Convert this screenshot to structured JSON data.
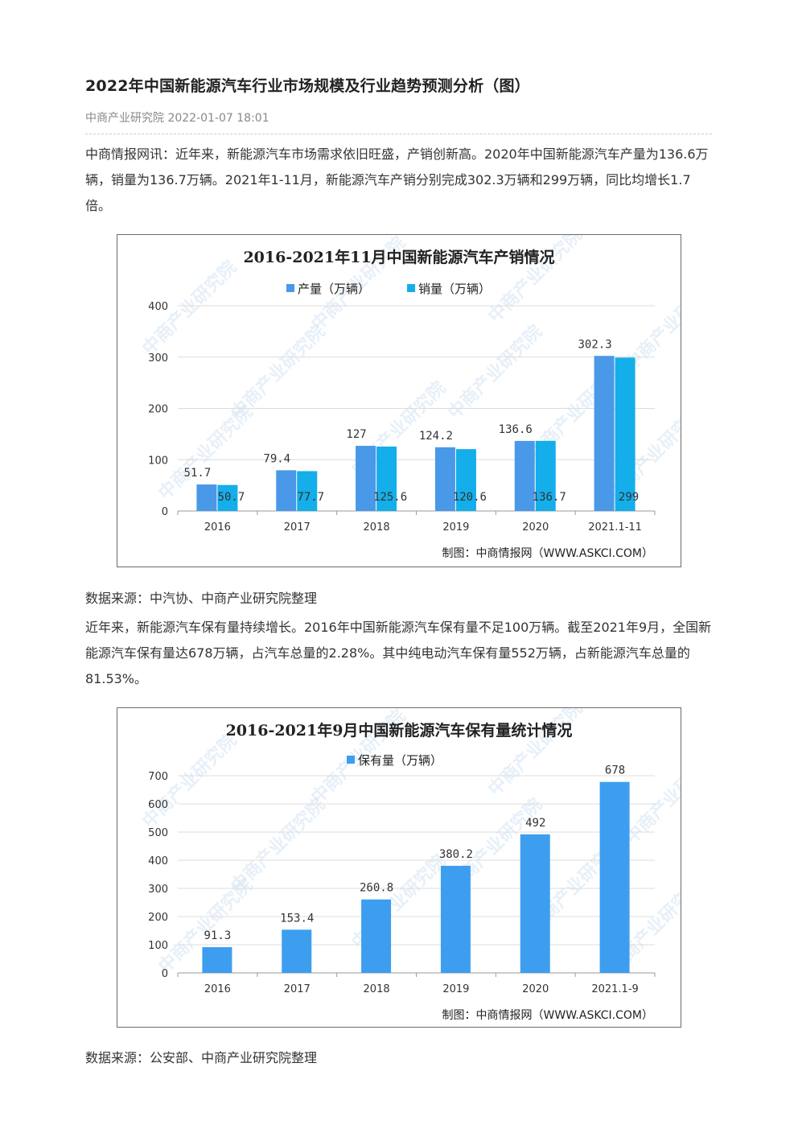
{
  "article": {
    "title": "2022年中国新能源汽车行业市场规模及行业趋势预测分析（图）",
    "source_time": "中商产业研究院 2022-01-07 18:01",
    "para1": "中商情报网讯：近年来，新能源汽车市场需求依旧旺盛，产销创新高。2020年中国新能源汽车产量为136.6万辆，销量为136.7万辆。2021年1-11月，新能源汽车产销分别完成302.3万辆和299万辆，同比均增长1.7倍。",
    "source1": "数据来源：中汽协、中商产业研究院整理",
    "para2": "近年来，新能源汽车保有量持续增长。2016年中国新能源汽车保有量不足100万辆。截至2021年9月，全国新能源汽车保有量达678万辆，占汽车总量的2.28%。其中纯电动汽车保有量552万辆，占新能源汽车总量的81.53%。",
    "source2": "数据来源：公安部、中商产业研究院整理"
  },
  "watermark": "中商产业研究院",
  "chart_data": [
    {
      "type": "bar",
      "title": "2016-2021年11月中国新能源汽车产销情况",
      "categories": [
        "2016",
        "2017",
        "2018",
        "2019",
        "2020",
        "2021.1-11"
      ],
      "series": [
        {
          "name": "产量（万辆）",
          "values": [
            51.7,
            79.4,
            127,
            124.2,
            136.6,
            302.3
          ],
          "labels": [
            "51.7",
            "79.4",
            "127",
            "124.2",
            "136.6",
            "302.3"
          ],
          "color": "#4a98e8"
        },
        {
          "name": "销量（万辆）",
          "values": [
            50.7,
            77.7,
            125.6,
            120.6,
            136.7,
            299
          ],
          "labels": [
            "50.7",
            "77.7",
            "125.6",
            "120.6",
            "136.7",
            "299"
          ],
          "color": "#14aeea"
        }
      ],
      "yticks": [
        "0",
        "100",
        "200",
        "300",
        "400"
      ],
      "ylim": [
        0,
        400
      ],
      "grid": true,
      "legend": "top-center",
      "footer": "制图：中商情报网（WWW.ASKCI.COM）"
    },
    {
      "type": "bar",
      "title": "2016-2021年9月中国新能源汽车保有量统计情况",
      "categories": [
        "2016",
        "2017",
        "2018",
        "2019",
        "2020",
        "2021.1-9"
      ],
      "series": [
        {
          "name": "保有量（万辆）",
          "values": [
            91.3,
            153.4,
            260.8,
            380.2,
            492,
            678
          ],
          "labels": [
            "91.3",
            "153.4",
            "260.8",
            "380.2",
            "492",
            "678"
          ],
          "color": "#3d9ef0"
        }
      ],
      "yticks": [
        "0",
        "100",
        "200",
        "300",
        "400",
        "500",
        "600",
        "700"
      ],
      "ylim": [
        0,
        700
      ],
      "grid": true,
      "legend": "top-center",
      "footer": "制图：中商情报网（WWW.ASKCI.COM）"
    }
  ]
}
